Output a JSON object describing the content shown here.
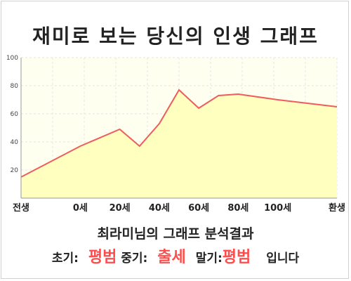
{
  "title": "재미로 보는 당신의 인생 그래프",
  "result": {
    "summary": "최라미님의 그래프 분석결과",
    "early_label": "초기:",
    "early_value": "평범",
    "mid_label": "중기:",
    "mid_value": "출세",
    "late_label": "말기:",
    "late_value": "평범",
    "suffix": "입니다"
  },
  "colors": {
    "line": "#ee5c5c",
    "fill": "#ffffc0",
    "plot_bg": "#fffff0",
    "highlight": "#ff4d4d"
  },
  "chart_data": {
    "type": "area",
    "title": "재미로 보는 당신의 인생 그래프",
    "xlabel": "",
    "ylabel": "",
    "x_tick_labels": [
      "전생",
      "0세",
      "20세",
      "40세",
      "60세",
      "80세",
      "100세",
      "환생"
    ],
    "y_tick_labels": [
      "20",
      "40",
      "60",
      "80",
      "100"
    ],
    "ylim": [
      0,
      100
    ],
    "grid": true,
    "series": [
      {
        "values": [
          {
            "x": "전생",
            "y": 15
          },
          {
            "x": "0세",
            "y": 37
          },
          {
            "x": "20세",
            "y": 49
          },
          {
            "x": "30세",
            "y": 37
          },
          {
            "x": "40세",
            "y": 53
          },
          {
            "x": "50세",
            "y": 77
          },
          {
            "x": "60세",
            "y": 64
          },
          {
            "x": "70세",
            "y": 73
          },
          {
            "x": "80세",
            "y": 74
          },
          {
            "x": "100세",
            "y": 70
          },
          {
            "x": "환생",
            "y": 65
          }
        ]
      }
    ]
  }
}
